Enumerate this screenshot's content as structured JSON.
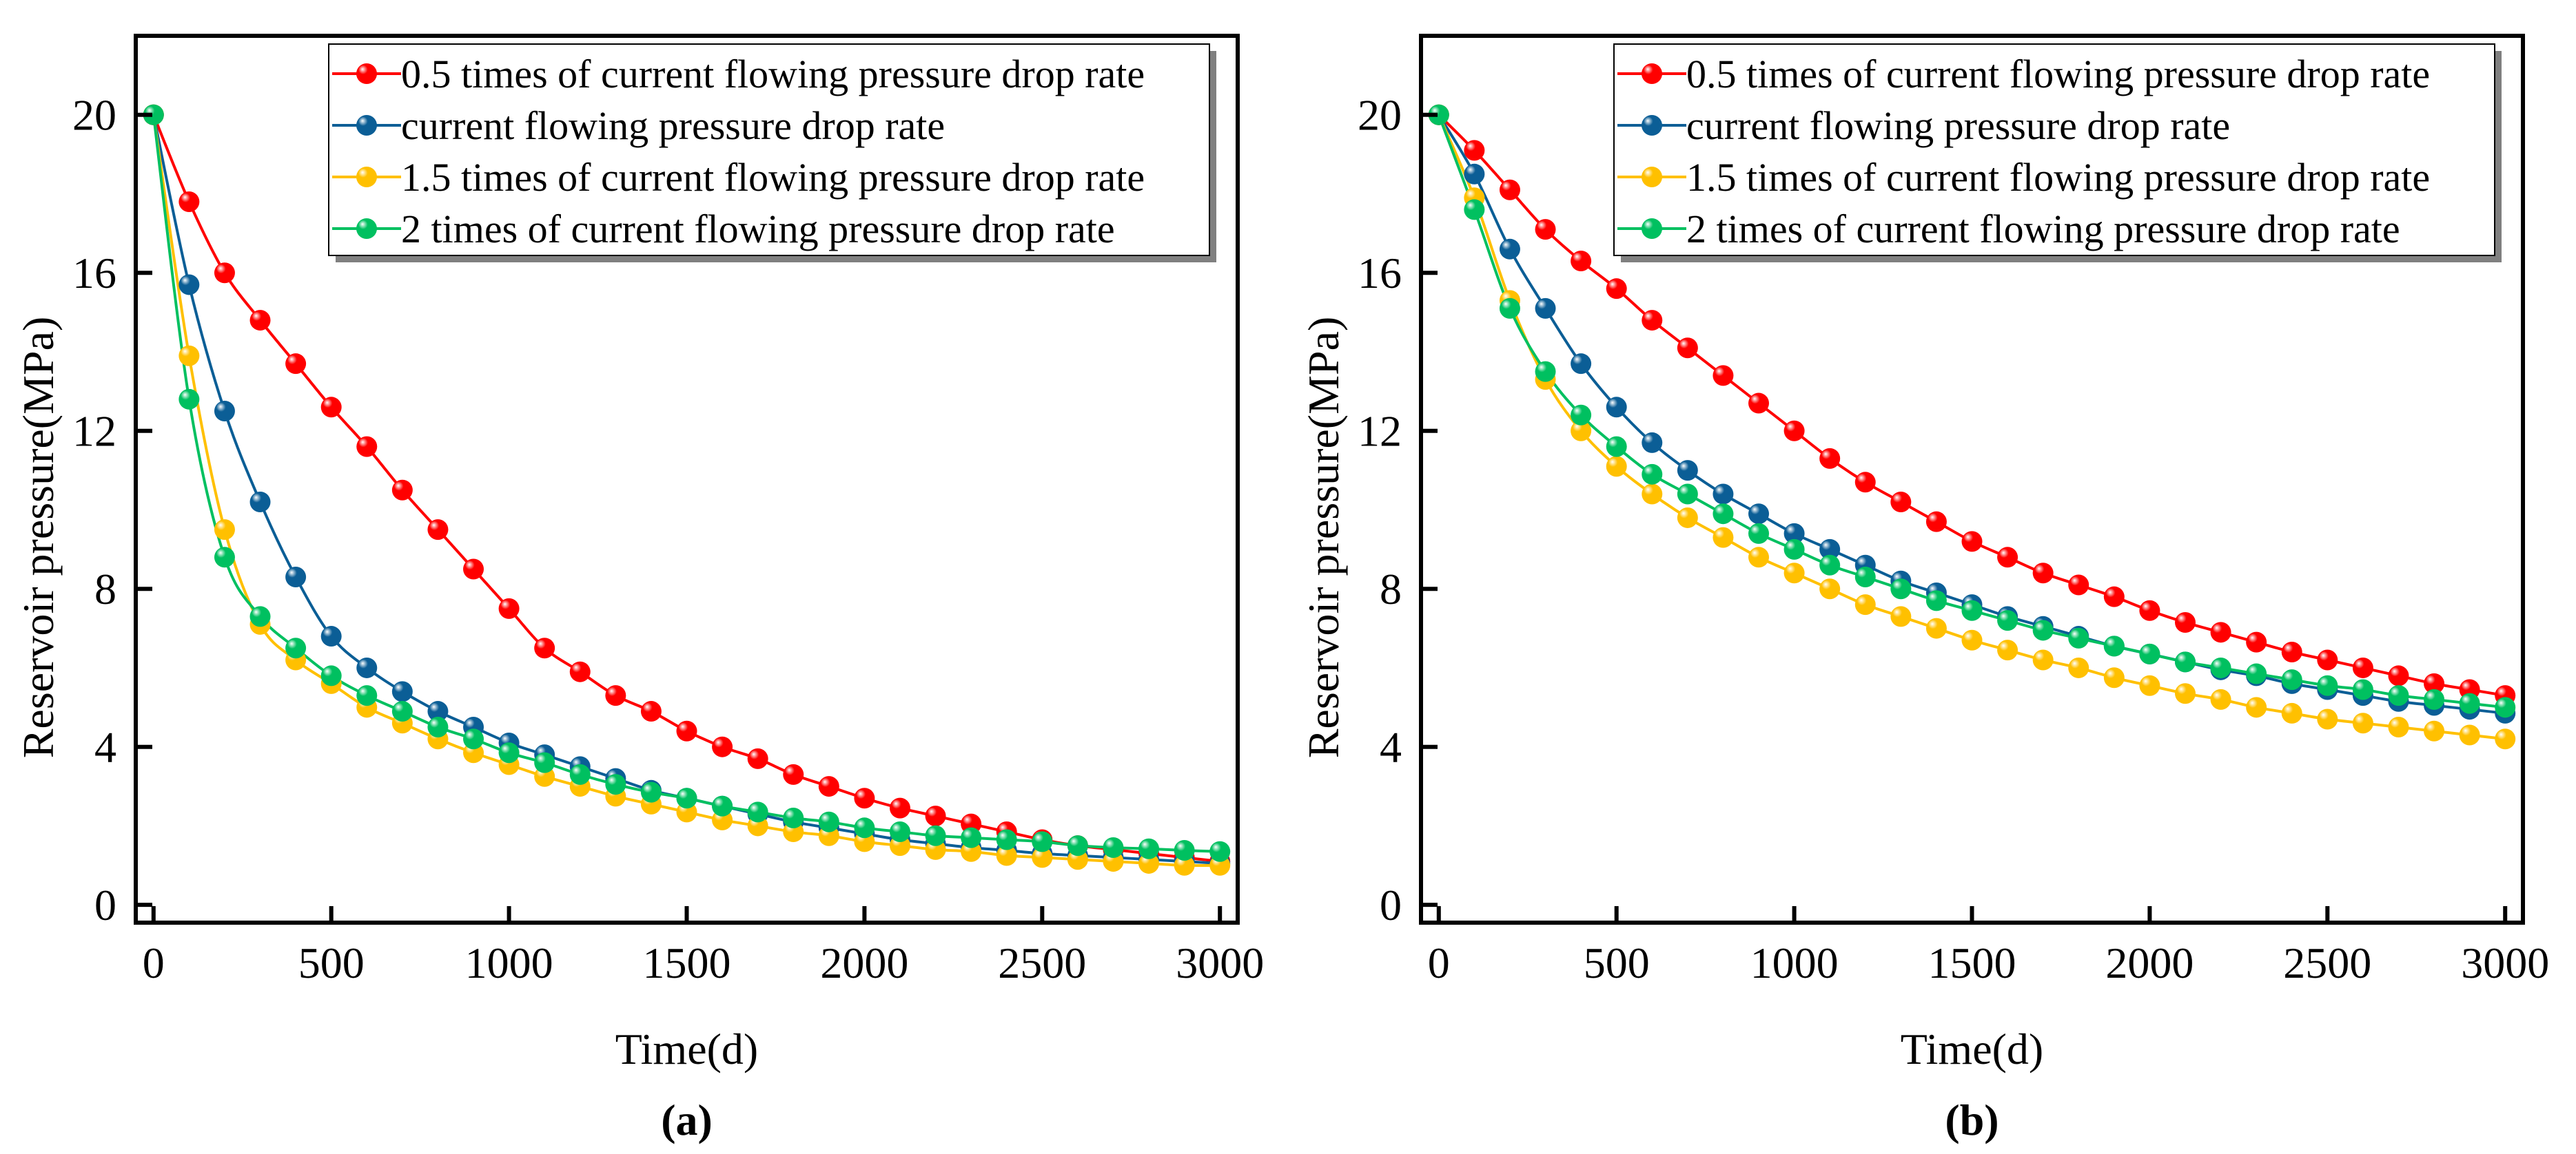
{
  "colors": {
    "series": [
      "#ff0000",
      "#0b5e96",
      "#ffc000",
      "#00c060"
    ],
    "axis": "#000000",
    "legend_shadow": "#808080"
  },
  "chart_data": [
    {
      "type": "line",
      "panel_label": "(a)",
      "xlabel": "Time(d)",
      "ylabel": "Reservoir pressure(MPa)",
      "xlim": [
        -50,
        3050
      ],
      "ylim": [
        -0.45,
        22
      ],
      "xticks": [
        0,
        500,
        1000,
        1500,
        2000,
        2500,
        3000
      ],
      "xtick_labels": [
        "0",
        "500",
        "1000",
        "1500",
        "2000",
        "2500",
        "3000"
      ],
      "yticks": [
        0,
        4,
        8,
        12,
        16,
        20
      ],
      "ytick_labels": [
        "0",
        "4",
        "8",
        "12",
        "16",
        "20"
      ],
      "legend_position": "top-right",
      "grid": false,
      "x": [
        0,
        100,
        200,
        300,
        400,
        500,
        600,
        700,
        800,
        900,
        1000,
        1100,
        1200,
        1300,
        1400,
        1500,
        1600,
        1700,
        1800,
        1900,
        2000,
        2100,
        2200,
        2300,
        2400,
        2500,
        2600,
        2700,
        2800,
        2900,
        3000
      ],
      "series": [
        {
          "name": "0.5 times of current flowing pressure drop rate",
          "values": [
            20,
            17.8,
            16.0,
            14.8,
            13.7,
            12.6,
            11.6,
            10.5,
            9.5,
            8.5,
            7.5,
            6.5,
            5.9,
            5.3,
            4.9,
            4.4,
            4.0,
            3.7,
            3.3,
            3.0,
            2.7,
            2.45,
            2.25,
            2.05,
            1.85,
            1.65,
            1.5,
            1.4,
            1.3,
            1.2,
            1.1
          ]
        },
        {
          "name": "current flowing pressure drop rate",
          "values": [
            20,
            15.7,
            12.5,
            10.2,
            8.3,
            6.8,
            6.0,
            5.4,
            4.9,
            4.5,
            4.1,
            3.8,
            3.5,
            3.2,
            2.9,
            2.7,
            2.5,
            2.3,
            2.1,
            1.95,
            1.8,
            1.65,
            1.55,
            1.45,
            1.38,
            1.3,
            1.25,
            1.2,
            1.15,
            1.1,
            1.05
          ]
        },
        {
          "name": "1.5 times of current flowing pressure drop rate",
          "values": [
            20,
            13.9,
            9.5,
            7.1,
            6.2,
            5.6,
            5.0,
            4.6,
            4.2,
            3.85,
            3.55,
            3.25,
            3.0,
            2.75,
            2.55,
            2.35,
            2.15,
            2.0,
            1.85,
            1.75,
            1.6,
            1.5,
            1.4,
            1.35,
            1.25,
            1.2,
            1.15,
            1.1,
            1.05,
            1.0,
            1.0
          ]
        },
        {
          "name": "2 times of current flowing pressure drop rate",
          "values": [
            20,
            12.8,
            8.8,
            7.3,
            6.5,
            5.8,
            5.3,
            4.9,
            4.5,
            4.2,
            3.85,
            3.6,
            3.3,
            3.05,
            2.85,
            2.7,
            2.5,
            2.35,
            2.2,
            2.1,
            1.95,
            1.85,
            1.75,
            1.7,
            1.65,
            1.6,
            1.5,
            1.45,
            1.42,
            1.38,
            1.35
          ]
        }
      ]
    },
    {
      "type": "line",
      "panel_label": "(b)",
      "xlabel": "Time(d)",
      "ylabel": "Reservoir pressure(MPa)",
      "xlim": [
        -50,
        3050
      ],
      "ylim": [
        -0.45,
        22
      ],
      "xticks": [
        0,
        500,
        1000,
        1500,
        2000,
        2500,
        3000
      ],
      "xtick_labels": [
        "0",
        "500",
        "1000",
        "1500",
        "2000",
        "2500",
        "3000"
      ],
      "yticks": [
        0,
        4,
        8,
        12,
        16,
        20
      ],
      "ytick_labels": [
        "0",
        "4",
        "8",
        "12",
        "16",
        "20"
      ],
      "legend_position": "top-right",
      "grid": false,
      "x": [
        0,
        100,
        200,
        300,
        400,
        500,
        600,
        700,
        800,
        900,
        1000,
        1100,
        1200,
        1300,
        1400,
        1500,
        1600,
        1700,
        1800,
        1900,
        2000,
        2100,
        2200,
        2300,
        2400,
        2500,
        2600,
        2700,
        2800,
        2900,
        3000
      ],
      "series": [
        {
          "name": "0.5 times of current flowing pressure drop rate",
          "values": [
            20,
            19.1,
            18.1,
            17.1,
            16.3,
            15.6,
            14.8,
            14.1,
            13.4,
            12.7,
            12.0,
            11.3,
            10.7,
            10.2,
            9.7,
            9.2,
            8.8,
            8.4,
            8.1,
            7.8,
            7.45,
            7.15,
            6.9,
            6.65,
            6.4,
            6.2,
            6.0,
            5.8,
            5.6,
            5.45,
            5.3
          ]
        },
        {
          "name": "current flowing pressure drop rate",
          "values": [
            20,
            18.5,
            16.6,
            15.1,
            13.7,
            12.6,
            11.7,
            11.0,
            10.4,
            9.9,
            9.4,
            9.0,
            8.6,
            8.2,
            7.9,
            7.6,
            7.3,
            7.05,
            6.8,
            6.55,
            6.35,
            6.15,
            5.95,
            5.8,
            5.6,
            5.45,
            5.3,
            5.15,
            5.05,
            4.95,
            4.85
          ]
        },
        {
          "name": "1.5 times of current flowing pressure drop rate",
          "values": [
            20,
            17.9,
            15.3,
            13.3,
            12.0,
            11.1,
            10.4,
            9.8,
            9.3,
            8.8,
            8.4,
            8.0,
            7.6,
            7.3,
            7.0,
            6.7,
            6.45,
            6.2,
            6.0,
            5.75,
            5.55,
            5.35,
            5.2,
            5.0,
            4.85,
            4.7,
            4.6,
            4.5,
            4.4,
            4.3,
            4.2
          ]
        },
        {
          "name": "2 times of current flowing pressure drop rate",
          "values": [
            20,
            17.6,
            15.1,
            13.5,
            12.4,
            11.6,
            10.9,
            10.4,
            9.9,
            9.4,
            9.0,
            8.6,
            8.3,
            8.0,
            7.7,
            7.45,
            7.2,
            6.95,
            6.75,
            6.55,
            6.35,
            6.15,
            6.0,
            5.85,
            5.7,
            5.55,
            5.45,
            5.3,
            5.2,
            5.1,
            5.0
          ]
        }
      ]
    }
  ]
}
